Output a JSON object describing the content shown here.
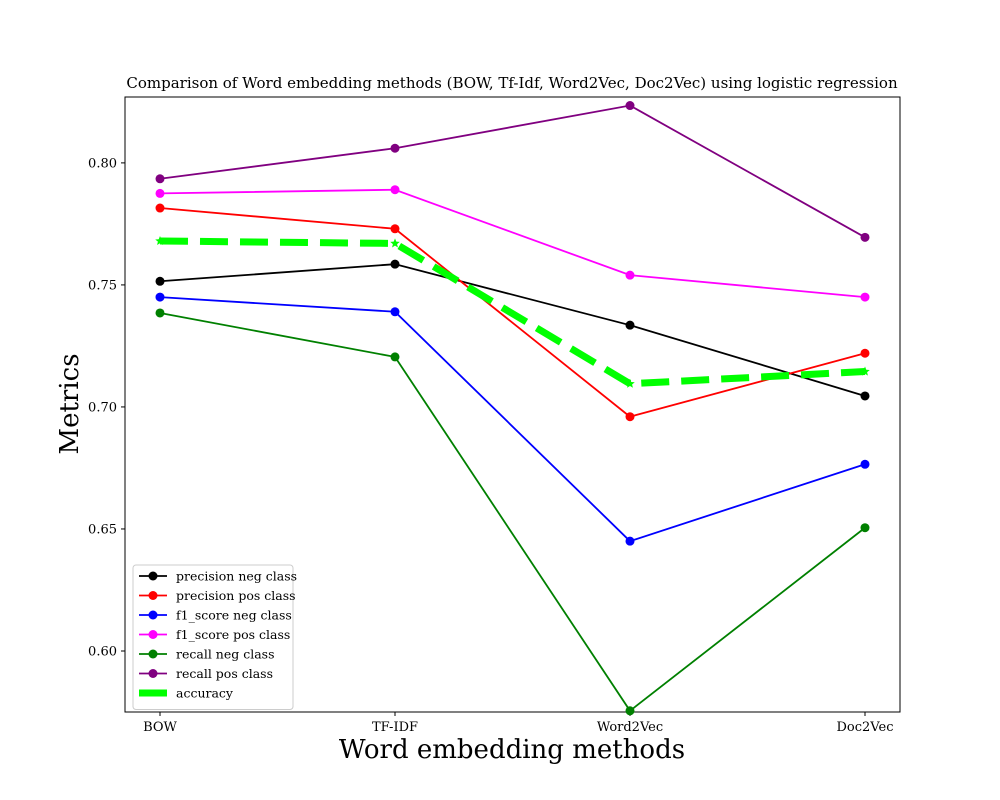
{
  "chart_data": {
    "type": "line",
    "title": "Comparison of Word embedding methods (BOW, Tf-Idf, Word2Vec, Doc2Vec) using logistic regression",
    "xlabel": "Word embedding methods",
    "ylabel": "Metrics",
    "categories": [
      "BOW",
      "TF-IDF",
      "Word2Vec",
      "Doc2Vec"
    ],
    "ylim": [
      0.575,
      0.827
    ],
    "yticks": [
      0.6,
      0.65,
      0.7,
      0.75,
      0.8
    ],
    "ytick_labels": [
      "0.60",
      "0.65",
      "0.70",
      "0.75",
      "0.80"
    ],
    "grid": false,
    "legend_position": "lower-left",
    "series": [
      {
        "name": "precision neg class",
        "color": "#000000",
        "marker": "circle",
        "style": "solid",
        "values": [
          0.7515,
          0.7585,
          0.7335,
          0.7045
        ]
      },
      {
        "name": "precision pos class",
        "color": "#ff0000",
        "marker": "circle",
        "style": "solid",
        "values": [
          0.7815,
          0.773,
          0.696,
          0.722
        ]
      },
      {
        "name": "f1_score neg class",
        "color": "#0000ff",
        "marker": "circle",
        "style": "solid",
        "values": [
          0.745,
          0.739,
          0.645,
          0.6765
        ]
      },
      {
        "name": "f1_score pos class",
        "color": "#ff00ff",
        "marker": "circle",
        "style": "solid",
        "values": [
          0.7875,
          0.789,
          0.754,
          0.745
        ]
      },
      {
        "name": "recall neg class",
        "color": "#008000",
        "marker": "circle",
        "style": "solid",
        "values": [
          0.7385,
          0.7205,
          0.5755,
          0.6505
        ]
      },
      {
        "name": "recall pos class",
        "color": "#800080",
        "marker": "circle",
        "style": "solid",
        "values": [
          0.7935,
          0.806,
          0.8235,
          0.7695
        ]
      },
      {
        "name": "accuracy",
        "color": "#00ff00",
        "marker": "star",
        "style": "dashed",
        "values": [
          0.768,
          0.767,
          0.7095,
          0.7145
        ]
      }
    ]
  }
}
